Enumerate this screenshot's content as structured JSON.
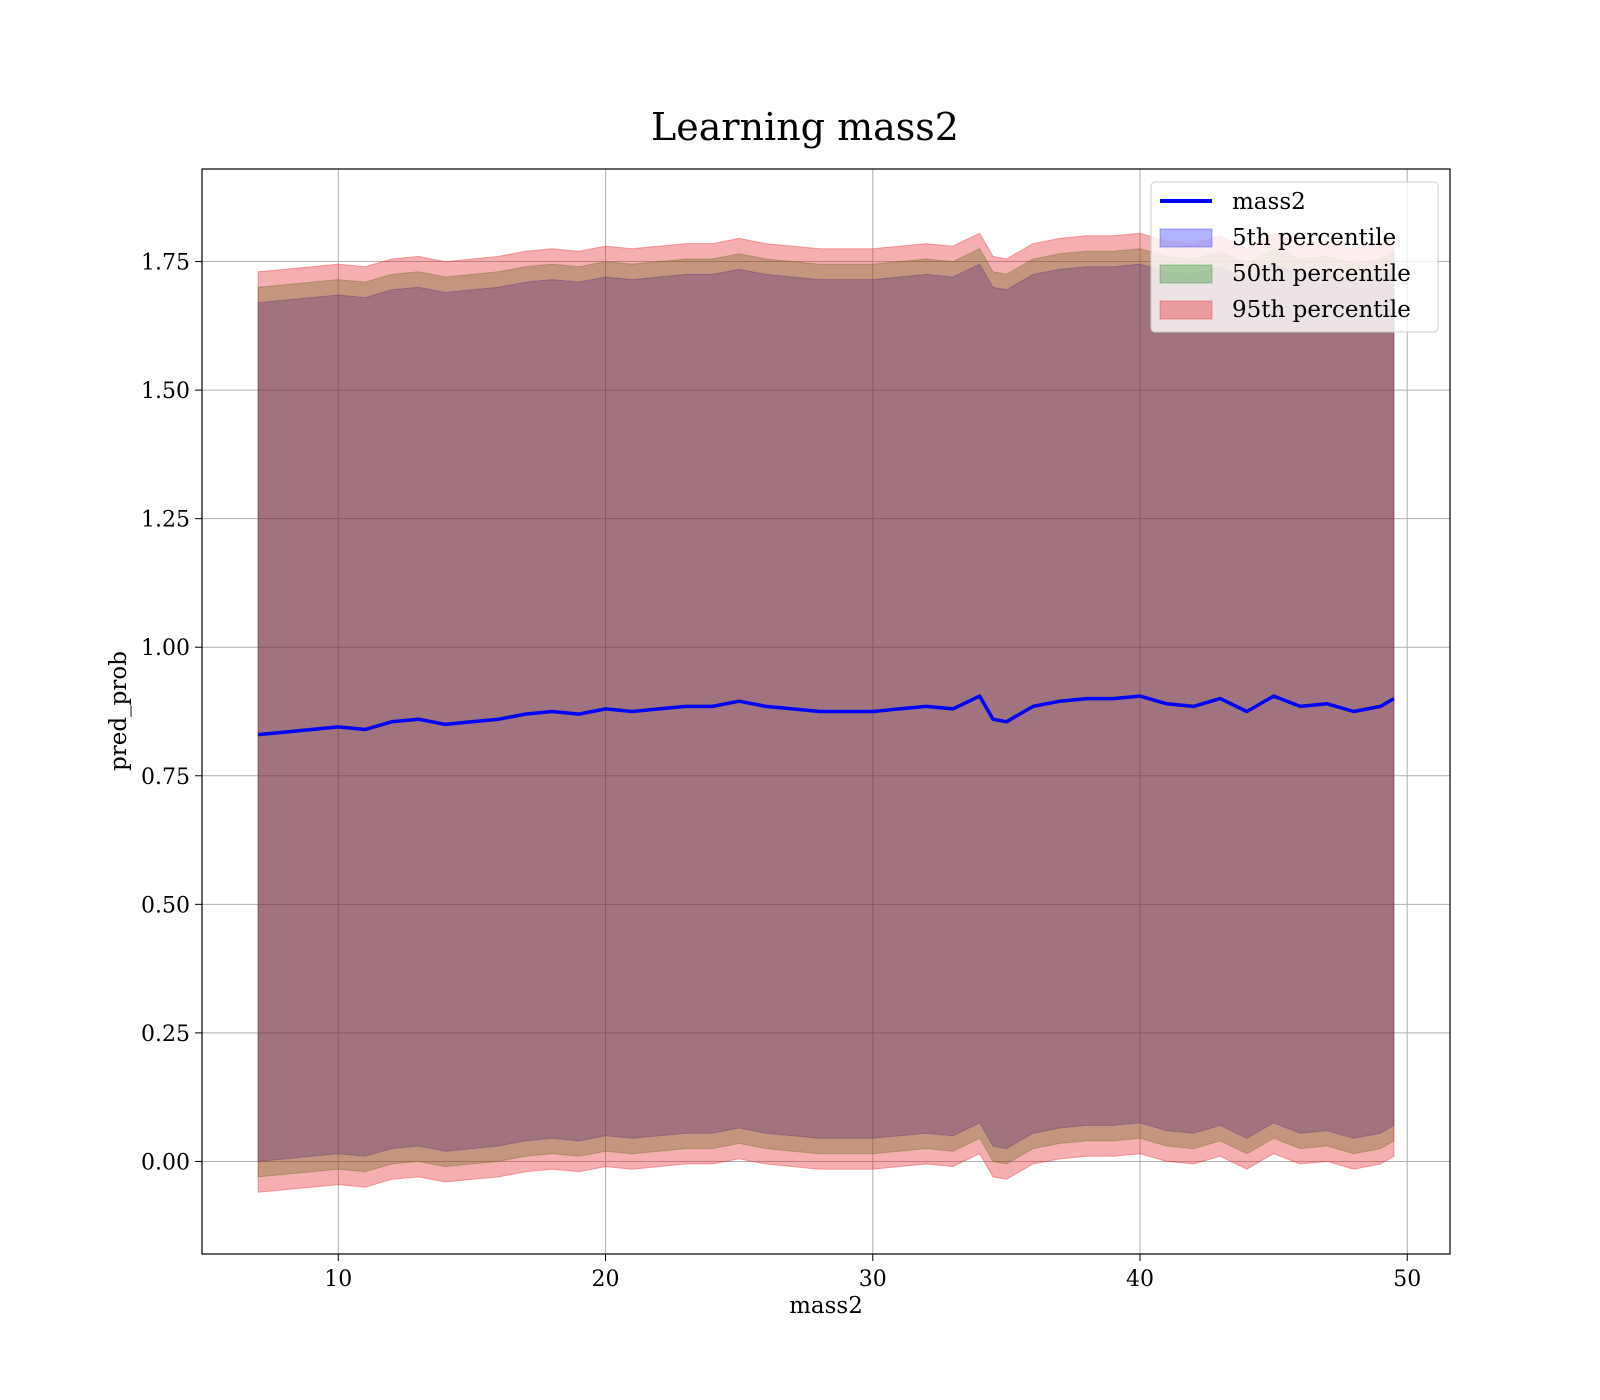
{
  "chart_data": {
    "type": "line",
    "title": "Learning mass2",
    "xlabel": "mass2",
    "ylabel": "pred_prob",
    "xlim": [
      4.9,
      51.6
    ],
    "ylim": [
      -0.18,
      1.93
    ],
    "xticks": [
      10,
      20,
      30,
      40,
      50
    ],
    "xtick_labels": [
      "10",
      "20",
      "30",
      "40",
      "50"
    ],
    "yticks": [
      0.0,
      0.25,
      0.5,
      0.75,
      1.0,
      1.25,
      1.5,
      1.75
    ],
    "ytick_labels": [
      "0.00",
      "0.25",
      "0.50",
      "0.75",
      "1.00",
      "1.25",
      "1.50",
      "1.75"
    ],
    "grid": true,
    "legend_position": "top-right",
    "x_range": [
      7.0,
      49.5
    ],
    "mean_line": {
      "name": "mass2",
      "color": "#0000ff",
      "x": [
        7,
        8,
        9,
        10,
        11,
        12,
        13,
        14,
        15,
        16,
        17,
        18,
        19,
        20,
        21,
        22,
        23,
        24,
        25,
        26,
        27,
        28,
        29,
        30,
        31,
        32,
        33,
        34,
        34.5,
        35,
        36,
        37,
        38,
        39,
        40,
        41,
        42,
        43,
        44,
        45,
        46,
        47,
        48,
        49,
        49.5
      ],
      "y": [
        0.83,
        0.835,
        0.84,
        0.845,
        0.84,
        0.855,
        0.86,
        0.85,
        0.855,
        0.86,
        0.87,
        0.875,
        0.87,
        0.88,
        0.875,
        0.88,
        0.885,
        0.885,
        0.895,
        0.885,
        0.88,
        0.875,
        0.875,
        0.875,
        0.88,
        0.885,
        0.88,
        0.905,
        0.86,
        0.855,
        0.885,
        0.895,
        0.9,
        0.9,
        0.905,
        0.89,
        0.885,
        0.9,
        0.875,
        0.905,
        0.885,
        0.89,
        0.875,
        0.885,
        0.9
      ]
    },
    "bands": [
      {
        "name": "5th percentile",
        "color": "#0000ff",
        "opacity": 0.3,
        "x": [
          7,
          8,
          9,
          10,
          11,
          12,
          13,
          14,
          15,
          16,
          17,
          18,
          19,
          20,
          21,
          22,
          23,
          24,
          25,
          26,
          27,
          28,
          29,
          30,
          31,
          32,
          33,
          34,
          34.5,
          35,
          36,
          37,
          38,
          39,
          40,
          41,
          42,
          43,
          44,
          45,
          46,
          47,
          48,
          49,
          49.5
        ],
        "lower": [
          0.0,
          0.005,
          0.01,
          0.015,
          0.01,
          0.025,
          0.03,
          0.02,
          0.025,
          0.03,
          0.04,
          0.045,
          0.04,
          0.05,
          0.045,
          0.05,
          0.055,
          0.055,
          0.065,
          0.055,
          0.05,
          0.045,
          0.045,
          0.045,
          0.05,
          0.055,
          0.05,
          0.075,
          0.03,
          0.025,
          0.055,
          0.065,
          0.07,
          0.07,
          0.075,
          0.06,
          0.055,
          0.07,
          0.045,
          0.075,
          0.055,
          0.06,
          0.045,
          0.055,
          0.07
        ],
        "upper": [
          1.67,
          1.675,
          1.68,
          1.685,
          1.68,
          1.695,
          1.7,
          1.69,
          1.695,
          1.7,
          1.71,
          1.715,
          1.71,
          1.72,
          1.715,
          1.72,
          1.725,
          1.725,
          1.735,
          1.725,
          1.72,
          1.715,
          1.715,
          1.715,
          1.72,
          1.725,
          1.72,
          1.745,
          1.7,
          1.695,
          1.725,
          1.735,
          1.74,
          1.74,
          1.745,
          1.73,
          1.725,
          1.74,
          1.715,
          1.745,
          1.725,
          1.73,
          1.715,
          1.725,
          1.74
        ]
      },
      {
        "name": "50th percentile",
        "color": "#008000",
        "opacity": 0.3,
        "x": [
          7,
          8,
          9,
          10,
          11,
          12,
          13,
          14,
          15,
          16,
          17,
          18,
          19,
          20,
          21,
          22,
          23,
          24,
          25,
          26,
          27,
          28,
          29,
          30,
          31,
          32,
          33,
          34,
          34.5,
          35,
          36,
          37,
          38,
          39,
          40,
          41,
          42,
          43,
          44,
          45,
          46,
          47,
          48,
          49,
          49.5
        ],
        "lower": [
          -0.03,
          -0.025,
          -0.02,
          -0.015,
          -0.02,
          -0.005,
          0.0,
          -0.01,
          -0.005,
          0.0,
          0.01,
          0.015,
          0.01,
          0.02,
          0.015,
          0.02,
          0.025,
          0.025,
          0.035,
          0.025,
          0.02,
          0.015,
          0.015,
          0.015,
          0.02,
          0.025,
          0.02,
          0.045,
          0.0,
          -0.005,
          0.025,
          0.035,
          0.04,
          0.04,
          0.045,
          0.03,
          0.025,
          0.04,
          0.015,
          0.045,
          0.025,
          0.03,
          0.015,
          0.025,
          0.04
        ],
        "upper": [
          1.7,
          1.705,
          1.71,
          1.715,
          1.71,
          1.725,
          1.73,
          1.72,
          1.725,
          1.73,
          1.74,
          1.745,
          1.74,
          1.75,
          1.745,
          1.75,
          1.755,
          1.755,
          1.765,
          1.755,
          1.75,
          1.745,
          1.745,
          1.745,
          1.75,
          1.755,
          1.75,
          1.775,
          1.73,
          1.725,
          1.755,
          1.765,
          1.77,
          1.77,
          1.775,
          1.76,
          1.755,
          1.77,
          1.745,
          1.775,
          1.755,
          1.76,
          1.745,
          1.755,
          1.77
        ]
      },
      {
        "name": "95th percentile",
        "color": "#e41a1c",
        "opacity": 0.35,
        "x": [
          7,
          8,
          9,
          10,
          11,
          12,
          13,
          14,
          15,
          16,
          17,
          18,
          19,
          20,
          21,
          22,
          23,
          24,
          25,
          26,
          27,
          28,
          29,
          30,
          31,
          32,
          33,
          34,
          34.5,
          35,
          36,
          37,
          38,
          39,
          40,
          41,
          42,
          43,
          44,
          45,
          46,
          47,
          48,
          49,
          49.5
        ],
        "lower": [
          -0.06,
          -0.055,
          -0.05,
          -0.045,
          -0.05,
          -0.035,
          -0.03,
          -0.04,
          -0.035,
          -0.03,
          -0.02,
          -0.015,
          -0.02,
          -0.01,
          -0.015,
          -0.01,
          -0.005,
          -0.005,
          0.005,
          -0.005,
          -0.01,
          -0.015,
          -0.015,
          -0.015,
          -0.01,
          -0.005,
          -0.01,
          0.015,
          -0.03,
          -0.035,
          -0.005,
          0.005,
          0.01,
          0.01,
          0.015,
          0.0,
          -0.005,
          0.01,
          -0.015,
          0.015,
          -0.005,
          0.0,
          -0.015,
          -0.005,
          0.01
        ],
        "upper": [
          1.73,
          1.735,
          1.74,
          1.745,
          1.74,
          1.755,
          1.76,
          1.75,
          1.755,
          1.76,
          1.77,
          1.775,
          1.77,
          1.78,
          1.775,
          1.78,
          1.785,
          1.785,
          1.795,
          1.785,
          1.78,
          1.775,
          1.775,
          1.775,
          1.78,
          1.785,
          1.78,
          1.805,
          1.76,
          1.755,
          1.785,
          1.795,
          1.8,
          1.8,
          1.805,
          1.79,
          1.785,
          1.8,
          1.775,
          1.805,
          1.785,
          1.79,
          1.775,
          1.785,
          1.8
        ]
      }
    ]
  }
}
